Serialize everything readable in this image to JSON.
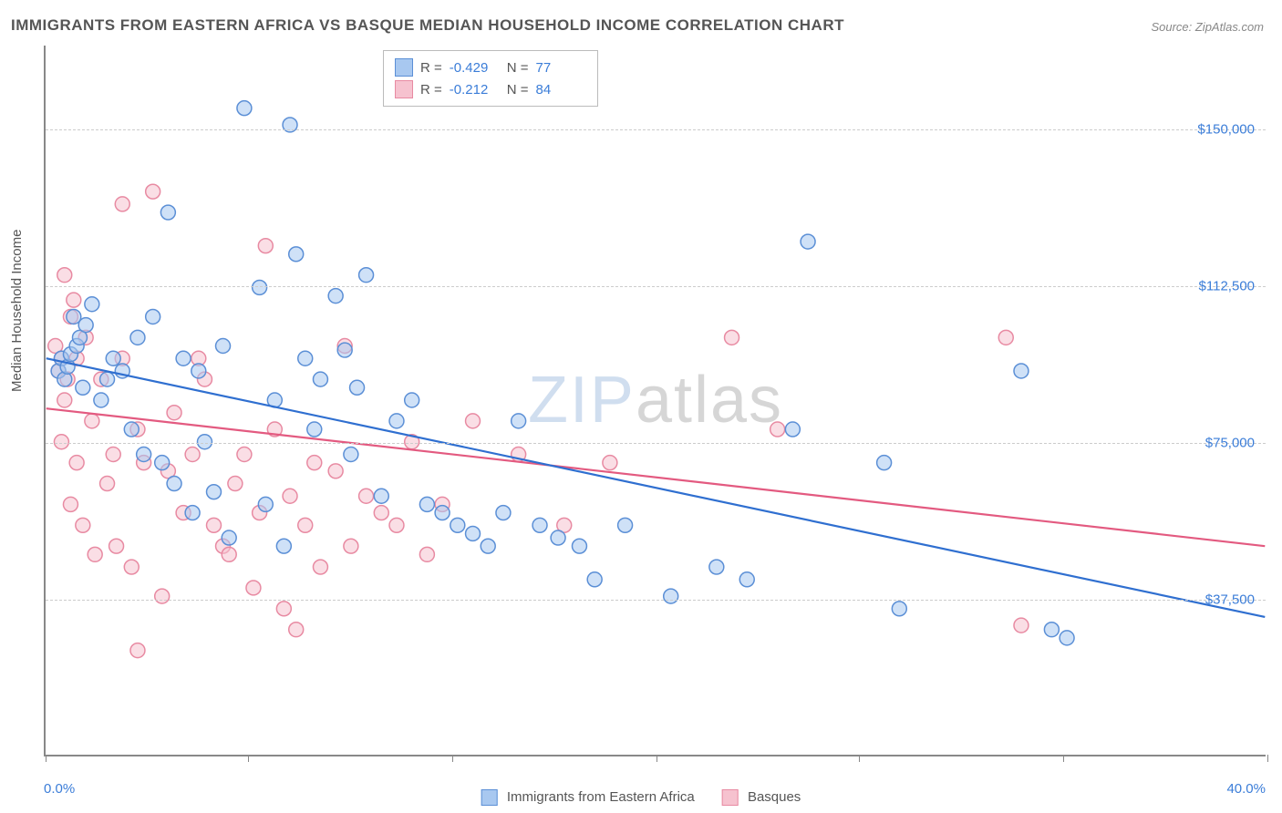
{
  "title": "IMMIGRANTS FROM EASTERN AFRICA VS BASQUE MEDIAN HOUSEHOLD INCOME CORRELATION CHART",
  "source": "Source: ZipAtlas.com",
  "watermark": {
    "part1": "ZIP",
    "part2": "atlas"
  },
  "chart": {
    "type": "scatter",
    "xlim": [
      0,
      40
    ],
    "ylim": [
      0,
      170000
    ],
    "x_axis": {
      "min_label": "0.0%",
      "max_label": "40.0%",
      "tick_positions_pct": [
        0,
        16.6,
        33.3,
        50,
        66.6,
        83.3,
        100
      ]
    },
    "y_axis": {
      "label": "Median Household Income",
      "gridlines": [
        {
          "value": 37500,
          "label": "$37,500"
        },
        {
          "value": 75000,
          "label": "$75,000"
        },
        {
          "value": 112500,
          "label": "$112,500"
        },
        {
          "value": 150000,
          "label": "$150,000"
        }
      ]
    },
    "label_color": "#3b7dd8",
    "axis_label_color": "#555555",
    "grid_color": "#cccccc",
    "background_color": "#ffffff",
    "marker_radius": 8,
    "marker_opacity": 0.55,
    "line_width": 2.2,
    "series": [
      {
        "name": "Immigrants from Eastern Africa",
        "color_fill": "#a8c8f0",
        "color_stroke": "#5b8fd6",
        "line_color": "#2f6fd0",
        "R": "-0.429",
        "N": "77",
        "trend": {
          "x1": 0,
          "y1": 95000,
          "x2": 40,
          "y2": 33000
        },
        "points": [
          [
            0.4,
            92000
          ],
          [
            0.5,
            95000
          ],
          [
            0.6,
            90000
          ],
          [
            0.7,
            93000
          ],
          [
            0.8,
            96000
          ],
          [
            0.9,
            105000
          ],
          [
            1.0,
            98000
          ],
          [
            1.1,
            100000
          ],
          [
            1.2,
            88000
          ],
          [
            1.3,
            103000
          ],
          [
            1.5,
            108000
          ],
          [
            1.8,
            85000
          ],
          [
            2.0,
            90000
          ],
          [
            2.2,
            95000
          ],
          [
            2.5,
            92000
          ],
          [
            2.8,
            78000
          ],
          [
            3.0,
            100000
          ],
          [
            3.2,
            72000
          ],
          [
            3.5,
            105000
          ],
          [
            3.8,
            70000
          ],
          [
            4.0,
            130000
          ],
          [
            4.2,
            65000
          ],
          [
            4.5,
            95000
          ],
          [
            4.8,
            58000
          ],
          [
            5.0,
            92000
          ],
          [
            5.2,
            75000
          ],
          [
            5.5,
            63000
          ],
          [
            5.8,
            98000
          ],
          [
            6.0,
            52000
          ],
          [
            6.5,
            155000
          ],
          [
            7.0,
            112000
          ],
          [
            7.2,
            60000
          ],
          [
            7.5,
            85000
          ],
          [
            7.8,
            50000
          ],
          [
            8.0,
            151000
          ],
          [
            8.2,
            120000
          ],
          [
            8.5,
            95000
          ],
          [
            8.8,
            78000
          ],
          [
            9.0,
            90000
          ],
          [
            9.5,
            110000
          ],
          [
            9.8,
            97000
          ],
          [
            10.0,
            72000
          ],
          [
            10.2,
            88000
          ],
          [
            10.5,
            115000
          ],
          [
            11.0,
            62000
          ],
          [
            11.5,
            80000
          ],
          [
            12.0,
            85000
          ],
          [
            12.5,
            60000
          ],
          [
            13.0,
            58000
          ],
          [
            13.5,
            55000
          ],
          [
            14.0,
            53000
          ],
          [
            14.5,
            50000
          ],
          [
            15.0,
            58000
          ],
          [
            15.5,
            80000
          ],
          [
            16.2,
            55000
          ],
          [
            16.8,
            52000
          ],
          [
            17.5,
            50000
          ],
          [
            18.0,
            42000
          ],
          [
            19.0,
            55000
          ],
          [
            20.5,
            38000
          ],
          [
            22.0,
            45000
          ],
          [
            23.0,
            42000
          ],
          [
            24.5,
            78000
          ],
          [
            25.0,
            123000
          ],
          [
            27.5,
            70000
          ],
          [
            28.0,
            35000
          ],
          [
            32.0,
            92000
          ],
          [
            33.0,
            30000
          ],
          [
            33.5,
            28000
          ]
        ]
      },
      {
        "name": "Basques",
        "color_fill": "#f6c2cf",
        "color_stroke": "#e88aa2",
        "line_color": "#e35a80",
        "R": "-0.212",
        "N": "84",
        "trend": {
          "x1": 0,
          "y1": 83000,
          "x2": 40,
          "y2": 50000
        },
        "points": [
          [
            0.3,
            98000
          ],
          [
            0.4,
            92000
          ],
          [
            0.5,
            95000
          ],
          [
            0.5,
            75000
          ],
          [
            0.6,
            115000
          ],
          [
            0.6,
            85000
          ],
          [
            0.7,
            90000
          ],
          [
            0.8,
            105000
          ],
          [
            0.8,
            60000
          ],
          [
            0.9,
            109000
          ],
          [
            1.0,
            70000
          ],
          [
            1.0,
            95000
          ],
          [
            1.2,
            55000
          ],
          [
            1.3,
            100000
          ],
          [
            1.5,
            80000
          ],
          [
            1.6,
            48000
          ],
          [
            1.8,
            90000
          ],
          [
            2.0,
            65000
          ],
          [
            2.2,
            72000
          ],
          [
            2.3,
            50000
          ],
          [
            2.5,
            132000
          ],
          [
            2.5,
            95000
          ],
          [
            2.8,
            45000
          ],
          [
            3.0,
            78000
          ],
          [
            3.0,
            25000
          ],
          [
            3.2,
            70000
          ],
          [
            3.5,
            135000
          ],
          [
            3.8,
            38000
          ],
          [
            4.0,
            68000
          ],
          [
            4.2,
            82000
          ],
          [
            4.5,
            58000
          ],
          [
            4.8,
            72000
          ],
          [
            5.0,
            95000
          ],
          [
            5.2,
            90000
          ],
          [
            5.5,
            55000
          ],
          [
            5.8,
            50000
          ],
          [
            6.0,
            48000
          ],
          [
            6.2,
            65000
          ],
          [
            6.5,
            72000
          ],
          [
            6.8,
            40000
          ],
          [
            7.0,
            58000
          ],
          [
            7.2,
            122000
          ],
          [
            7.5,
            78000
          ],
          [
            7.8,
            35000
          ],
          [
            8.0,
            62000
          ],
          [
            8.2,
            30000
          ],
          [
            8.5,
            55000
          ],
          [
            8.8,
            70000
          ],
          [
            9.0,
            45000
          ],
          [
            9.5,
            68000
          ],
          [
            9.8,
            98000
          ],
          [
            10.0,
            50000
          ],
          [
            10.5,
            62000
          ],
          [
            11.0,
            58000
          ],
          [
            11.5,
            55000
          ],
          [
            12.0,
            75000
          ],
          [
            12.5,
            48000
          ],
          [
            13.0,
            60000
          ],
          [
            14.0,
            80000
          ],
          [
            15.5,
            72000
          ],
          [
            17.0,
            55000
          ],
          [
            18.5,
            70000
          ],
          [
            22.5,
            100000
          ],
          [
            24.0,
            78000
          ],
          [
            32.0,
            31000
          ],
          [
            31.5,
            100000
          ]
        ]
      }
    ]
  },
  "bottom_legend": [
    {
      "label": "Immigrants from Eastern Africa",
      "fill": "#a8c8f0",
      "stroke": "#5b8fd6"
    },
    {
      "label": "Basques",
      "fill": "#f6c2cf",
      "stroke": "#e88aa2"
    }
  ]
}
